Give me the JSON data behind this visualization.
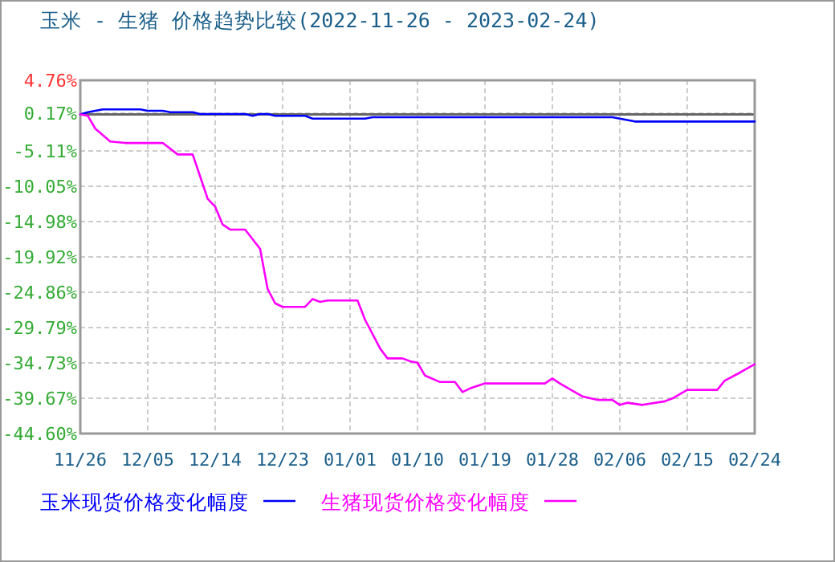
{
  "chart_data": {
    "type": "line",
    "title": "玉米 - 生猪 价格趋势比较(2022-11-26 - 2023-02-24)",
    "xlim": [
      "2022-11-26",
      "2023-02-24"
    ],
    "xticks": [
      {
        "value": "2022-11-26",
        "label": "11/26"
      },
      {
        "value": "2022-12-05",
        "label": "12/05"
      },
      {
        "value": "2022-12-14",
        "label": "12/14"
      },
      {
        "value": "2022-12-23",
        "label": "12/23"
      },
      {
        "value": "2023-01-01",
        "label": "01/01"
      },
      {
        "value": "2023-01-10",
        "label": "01/10"
      },
      {
        "value": "2023-01-19",
        "label": "01/19"
      },
      {
        "value": "2023-01-28",
        "label": "01/28"
      },
      {
        "value": "2023-02-06",
        "label": "02/06"
      },
      {
        "value": "2023-02-15",
        "label": "02/15"
      },
      {
        "value": "2023-02-24",
        "label": "02/24"
      }
    ],
    "ylim": [
      -44.6,
      4.76
    ],
    "yticks": [
      {
        "value": 4.76,
        "label": "4.76%"
      },
      {
        "value": 0.17,
        "label": "0.17%"
      },
      {
        "value": -5.11,
        "label": "-5.11%"
      },
      {
        "value": -10.05,
        "label": "-10.05%"
      },
      {
        "value": -14.98,
        "label": "-14.98%"
      },
      {
        "value": -19.92,
        "label": "-19.92%"
      },
      {
        "value": -24.86,
        "label": "-24.86%"
      },
      {
        "value": -29.79,
        "label": "-29.79%"
      },
      {
        "value": -34.73,
        "label": "-34.73%"
      },
      {
        "value": -39.67,
        "label": "-39.67%"
      },
      {
        "value": -44.6,
        "label": "-44.60%"
      }
    ],
    "grid": true,
    "legend": "bottom",
    "marker": "none",
    "line_style": "solid",
    "ref_lines": [
      {
        "axis": "y",
        "value": 0,
        "color": "#666666"
      }
    ],
    "series": [
      {
        "name": "玉米现货价格变化幅度",
        "color": "#0000ff",
        "x": [
          "2022-11-26",
          "2022-11-27",
          "2022-11-29",
          "2022-12-04",
          "2022-12-05",
          "2022-12-07",
          "2022-12-08",
          "2022-12-11",
          "2022-12-12",
          "2022-12-18",
          "2022-12-19",
          "2022-12-20",
          "2022-12-21",
          "2022-12-22",
          "2022-12-26",
          "2022-12-27",
          "2023-01-03",
          "2023-01-04",
          "2023-02-05",
          "2023-02-06",
          "2023-02-08",
          "2023-02-24"
        ],
        "values": [
          0,
          0.3,
          0.7,
          0.7,
          0.5,
          0.5,
          0.3,
          0.3,
          0.05,
          0.05,
          -0.2,
          0.05,
          0.05,
          -0.2,
          -0.2,
          -0.6,
          -0.6,
          -0.4,
          -0.4,
          -0.6,
          -1.0,
          -1.0
        ]
      },
      {
        "name": "生猪现货价格变化幅度",
        "color": "#ff00ff",
        "x": [
          "2022-11-26",
          "2022-11-27",
          "2022-11-28",
          "2022-11-30",
          "2022-12-02",
          "2022-12-07",
          "2022-12-09",
          "2022-12-11",
          "2022-12-12",
          "2022-12-13",
          "2022-12-14",
          "2022-12-15",
          "2022-12-16",
          "2022-12-18",
          "2022-12-20",
          "2022-12-21",
          "2022-12-22",
          "2022-12-23",
          "2022-12-26",
          "2022-12-27",
          "2022-12-28",
          "2022-12-29",
          "2023-01-02",
          "2023-01-03",
          "2023-01-05",
          "2023-01-06",
          "2023-01-08",
          "2023-01-09",
          "2023-01-10",
          "2023-01-11",
          "2023-01-13",
          "2023-01-15",
          "2023-01-16",
          "2023-01-17",
          "2023-01-19",
          "2023-01-27",
          "2023-01-28",
          "2023-01-29",
          "2023-01-31",
          "2023-02-01",
          "2023-02-03",
          "2023-02-05",
          "2023-02-06",
          "2023-02-07",
          "2023-02-09",
          "2023-02-12",
          "2023-02-13",
          "2023-02-15",
          "2023-02-19",
          "2023-02-20",
          "2023-02-22",
          "2023-02-24"
        ],
        "values": [
          0,
          -0.2,
          -2.0,
          -3.8,
          -4.0,
          -4.0,
          -5.6,
          -5.6,
          -8.7,
          -11.8,
          -12.9,
          -15.4,
          -16.1,
          -16.1,
          -18.8,
          -24.4,
          -26.4,
          -26.9,
          -26.9,
          -25.8,
          -26.2,
          -26.0,
          -26.0,
          -28.7,
          -32.7,
          -34.1,
          -34.1,
          -34.5,
          -34.7,
          -36.5,
          -37.4,
          -37.4,
          -38.8,
          -38.3,
          -37.6,
          -37.6,
          -36.9,
          -37.6,
          -38.8,
          -39.4,
          -39.9,
          -39.9,
          -40.6,
          -40.3,
          -40.6,
          -40.1,
          -39.7,
          -38.5,
          -38.5,
          -37.2,
          -36.1,
          -34.9
        ]
      }
    ]
  }
}
